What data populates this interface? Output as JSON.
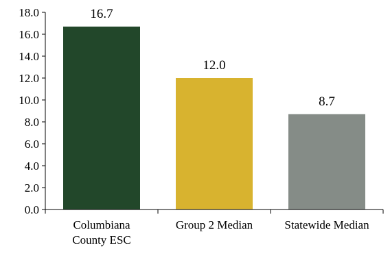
{
  "chart_data": {
    "type": "bar",
    "categories": [
      [
        "Columbiana",
        "County ESC"
      ],
      [
        "Group 2 Median"
      ],
      [
        "Statewide Median"
      ]
    ],
    "values": [
      16.7,
      12.0,
      8.7
    ],
    "value_labels": [
      "16.7",
      "12.0",
      "8.7"
    ],
    "colors": [
      "#22472a",
      "#d8b32f",
      "#858c87"
    ],
    "ylim": [
      0,
      18
    ],
    "yticks": [
      "0.0",
      "2.0",
      "4.0",
      "6.0",
      "8.0",
      "10.0",
      "12.0",
      "14.0",
      "16.0",
      "18.0"
    ],
    "grid": false,
    "title": "",
    "xlabel": "",
    "ylabel": ""
  }
}
